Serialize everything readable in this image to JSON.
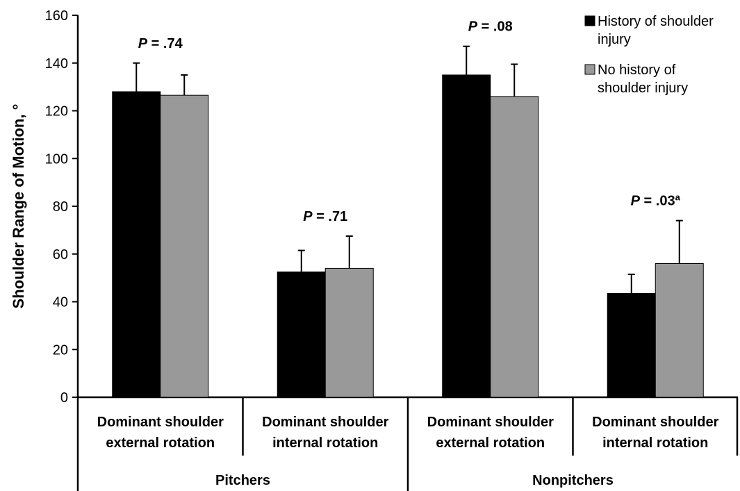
{
  "chart_data": {
    "type": "bar",
    "ylabel": "Shoulder Range of Motion, °",
    "ylim": [
      0,
      160
    ],
    "yticks": [
      0,
      20,
      40,
      60,
      80,
      100,
      120,
      140,
      160
    ],
    "categories": [
      {
        "line1": "Dominant shoulder",
        "line2": "external rotation"
      },
      {
        "line1": "Dominant shoulder",
        "line2": "internal rotation"
      },
      {
        "line1": "Dominant shoulder",
        "line2": "external rotation"
      },
      {
        "line1": "Dominant shoulder",
        "line2": "internal rotation"
      }
    ],
    "groups": [
      {
        "label": "Pitchers",
        "categories": [
          0,
          1
        ]
      },
      {
        "label": "Nonpitchers",
        "categories": [
          2,
          3
        ]
      }
    ],
    "series": [
      {
        "name": "History of shoulder injury",
        "name_lines": [
          "History of shoulder",
          "injury"
        ],
        "color": "#000000",
        "values": [
          128,
          52.5,
          135,
          43.5
        ],
        "errors": [
          12,
          9,
          12,
          8
        ]
      },
      {
        "name": "No history of shoulder injury",
        "name_lines": [
          "No history of",
          "shoulder injury"
        ],
        "color": "#999999",
        "values": [
          126.5,
          54,
          126,
          56
        ],
        "errors": [
          8.5,
          13.5,
          13.5,
          18
        ]
      }
    ],
    "annotations": [
      {
        "category": 0,
        "prefix": "P",
        "text": " = .74",
        "sup": ""
      },
      {
        "category": 1,
        "prefix": "P",
        "text": " = .71",
        "sup": ""
      },
      {
        "category": 2,
        "prefix": "P",
        "text": " = .08",
        "sup": ""
      },
      {
        "category": 3,
        "prefix": "P",
        "text": " = .03",
        "sup": "a"
      }
    ],
    "legend_position": "top-right",
    "grid": false
  }
}
